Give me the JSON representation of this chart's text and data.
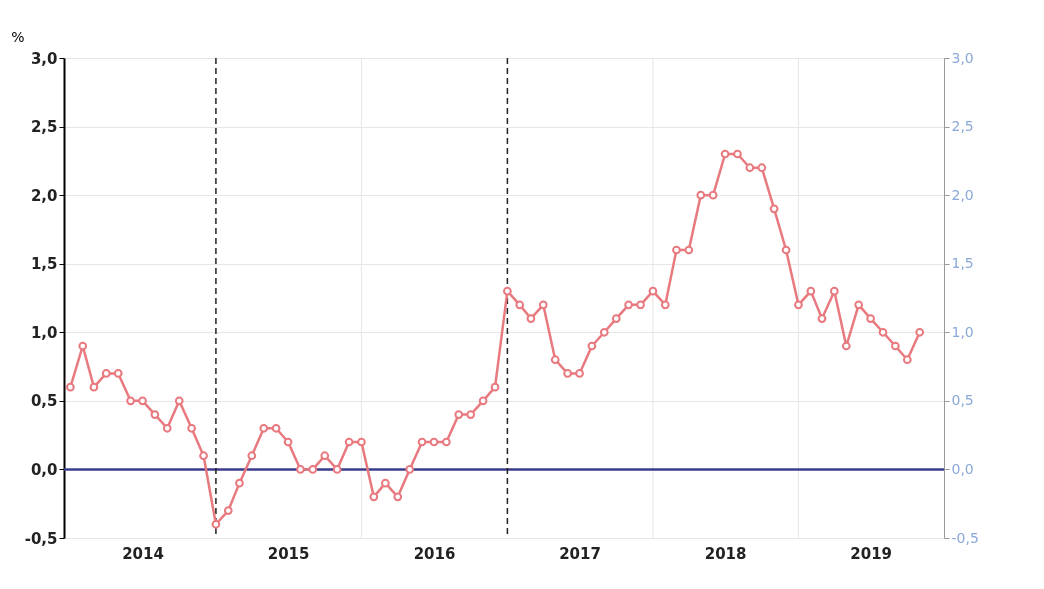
{
  "chart_data": {
    "type": "line",
    "ylabel": "%",
    "x": [
      "2014-01",
      "2014-02",
      "2014-03",
      "2014-04",
      "2014-05",
      "2014-06",
      "2014-07",
      "2014-08",
      "2014-09",
      "2014-10",
      "2014-11",
      "2014-12",
      "2015-01",
      "2015-02",
      "2015-03",
      "2015-04",
      "2015-05",
      "2015-06",
      "2015-07",
      "2015-08",
      "2015-09",
      "2015-10",
      "2015-11",
      "2015-12",
      "2016-01",
      "2016-02",
      "2016-03",
      "2016-04",
      "2016-05",
      "2016-06",
      "2016-07",
      "2016-08",
      "2016-09",
      "2016-10",
      "2016-11",
      "2016-12",
      "2017-01",
      "2017-02",
      "2017-03",
      "2017-04",
      "2017-05",
      "2017-06",
      "2017-07",
      "2017-08",
      "2017-09",
      "2017-10",
      "2017-11",
      "2017-12",
      "2018-01",
      "2018-02",
      "2018-03",
      "2018-04",
      "2018-05",
      "2018-06",
      "2018-07",
      "2018-08",
      "2018-09",
      "2018-10",
      "2018-11",
      "2018-12",
      "2019-01",
      "2019-02",
      "2019-03",
      "2019-04",
      "2019-05",
      "2019-06",
      "2019-07",
      "2019-08",
      "2019-09",
      "2019-10",
      "2019-11"
    ],
    "series": [
      {
        "color": "#e8797f",
        "values": [
          0.6,
          0.9,
          0.6,
          0.7,
          0.7,
          0.5,
          0.5,
          0.4,
          0.3,
          0.5,
          0.3,
          0.1,
          -0.4,
          -0.3,
          -0.1,
          0.1,
          0.3,
          0.3,
          0.2,
          0.0,
          0.0,
          0.1,
          0.0,
          0.2,
          0.2,
          -0.2,
          -0.1,
          -0.2,
          0.0,
          0.2,
          0.2,
          0.2,
          0.4,
          0.4,
          0.5,
          0.6,
          1.3,
          1.2,
          1.1,
          1.2,
          0.8,
          0.7,
          0.7,
          0.9,
          1.0,
          1.1,
          1.2,
          1.2,
          1.3,
          1.2,
          1.6,
          1.6,
          2.0,
          2.0,
          2.3,
          2.3,
          2.2,
          2.2,
          1.9,
          1.6,
          1.2,
          1.3,
          1.1,
          1.3,
          0.9,
          1.2,
          1.1,
          1.0,
          0.9,
          0.8,
          1.0
        ]
      }
    ],
    "xlim": [
      "2013-12-16",
      "2020-01-01"
    ],
    "xticks": [
      {
        "value": "2014-07-01",
        "label": "2014"
      },
      {
        "value": "2015-07-01",
        "label": "2015"
      },
      {
        "value": "2016-07-01",
        "label": "2016"
      },
      {
        "value": "2017-07-01",
        "label": "2017"
      },
      {
        "value": "2018-07-01",
        "label": "2018"
      },
      {
        "value": "2019-07-01",
        "label": "2019"
      },
      {
        "value": "2016-01-01",
        "label": null
      },
      {
        "value": "2018-01-01",
        "label": null
      },
      {
        "value": "2019-01-01",
        "label": null
      }
    ],
    "ylim": [
      -0.5,
      3.0
    ],
    "yticks": [
      {
        "value": -0.5,
        "label": "-0,5"
      },
      {
        "value": 0,
        "label": "0,0"
      },
      {
        "value": 0.5,
        "label": "0,5"
      },
      {
        "value": 1.0,
        "label": "1,0"
      },
      {
        "value": 1.5,
        "label": "1,5"
      },
      {
        "value": 2.0,
        "label": "2,0"
      },
      {
        "value": 2.5,
        "label": "2,5"
      },
      {
        "value": 3.0,
        "label": "3,0"
      }
    ],
    "y2lim": [
      -0.5,
      3.0
    ],
    "y2ticks": [
      {
        "value": -0.5,
        "label": "-0,5"
      },
      {
        "value": 0,
        "label": "0,0"
      },
      {
        "value": 0.5,
        "label": "0,5"
      },
      {
        "value": 1.0,
        "label": "1,0"
      },
      {
        "value": 1.5,
        "label": "1,5"
      },
      {
        "value": 2.0,
        "label": "2,0"
      },
      {
        "value": 2.5,
        "label": "2,5"
      },
      {
        "value": 3.0,
        "label": "3,0"
      }
    ],
    "ref_lines": [
      {
        "axis": "y",
        "value": 0,
        "color": "#3c3c8c",
        "line_style": "solid"
      },
      {
        "axis": "x",
        "value": "2015-01-01",
        "color": "#222222",
        "line_style": "dashed"
      },
      {
        "axis": "x",
        "value": "2017-01-01",
        "color": "#222222",
        "line_style": "dashed"
      }
    ],
    "grid": true,
    "marker": "circle",
    "line_style": "solid"
  }
}
